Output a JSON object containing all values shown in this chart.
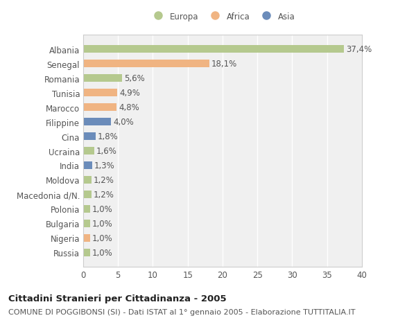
{
  "categories": [
    "Albania",
    "Senegal",
    "Romania",
    "Tunisia",
    "Marocco",
    "Filippine",
    "Cina",
    "Ucraina",
    "India",
    "Moldova",
    "Macedonia d/N.",
    "Polonia",
    "Bulgaria",
    "Nigeria",
    "Russia"
  ],
  "values": [
    37.4,
    18.1,
    5.6,
    4.9,
    4.8,
    4.0,
    1.8,
    1.6,
    1.3,
    1.2,
    1.2,
    1.0,
    1.0,
    1.0,
    1.0
  ],
  "labels": [
    "37,4%",
    "18,1%",
    "5,6%",
    "4,9%",
    "4,8%",
    "4,0%",
    "1,8%",
    "1,6%",
    "1,3%",
    "1,2%",
    "1,2%",
    "1,0%",
    "1,0%",
    "1,0%",
    "1,0%"
  ],
  "colors": [
    "#b5c98e",
    "#f0b482",
    "#b5c98e",
    "#f0b482",
    "#f0b482",
    "#6b8cba",
    "#6b8cba",
    "#b5c98e",
    "#6b8cba",
    "#b5c98e",
    "#b5c98e",
    "#b5c98e",
    "#b5c98e",
    "#f0b482",
    "#b5c98e"
  ],
  "legend_labels": [
    "Europa",
    "Africa",
    "Asia"
  ],
  "legend_colors": [
    "#b5c98e",
    "#f0b482",
    "#6b8cba"
  ],
  "xlim": [
    0,
    40
  ],
  "xticks": [
    0,
    5,
    10,
    15,
    20,
    25,
    30,
    35,
    40
  ],
  "title_bold": "Cittadini Stranieri per Cittadinanza - 2005",
  "subtitle": "COMUNE DI POGGIBONSI (SI) - Dati ISTAT al 1° gennaio 2005 - Elaborazione TUTTITALIA.IT",
  "background_color": "#ffffff",
  "plot_bg_color": "#f0f0f0",
  "grid_color": "#ffffff",
  "bar_height": 0.55,
  "label_fontsize": 8.5,
  "tick_fontsize": 8.5,
  "title_fontsize": 9.5,
  "subtitle_fontsize": 8
}
